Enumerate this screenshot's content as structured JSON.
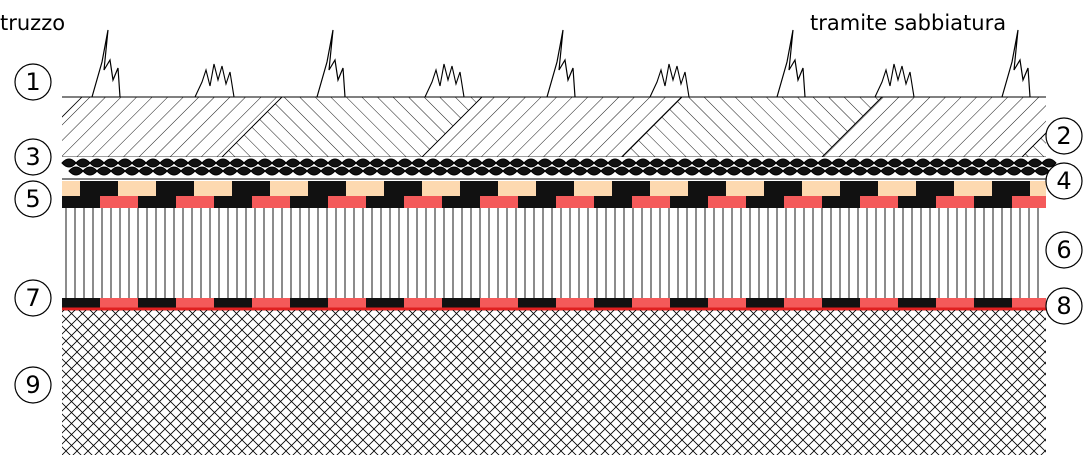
{
  "labels": {
    "top_left": "truzzo",
    "top_right": "tramite sabbiatura"
  },
  "callouts": [
    {
      "id": "1",
      "text": "1"
    },
    {
      "id": "2",
      "text": "2"
    },
    {
      "id": "3",
      "text": "3"
    },
    {
      "id": "4",
      "text": "4"
    },
    {
      "id": "5",
      "text": "5"
    },
    {
      "id": "6",
      "text": "6"
    },
    {
      "id": "7",
      "text": "7"
    },
    {
      "id": "8",
      "text": "8"
    },
    {
      "id": "9",
      "text": "9"
    }
  ],
  "colors": {
    "peach": "#fdd9b0",
    "red": "#f45a5a",
    "black": "#111111",
    "red_line": "#e02020"
  }
}
